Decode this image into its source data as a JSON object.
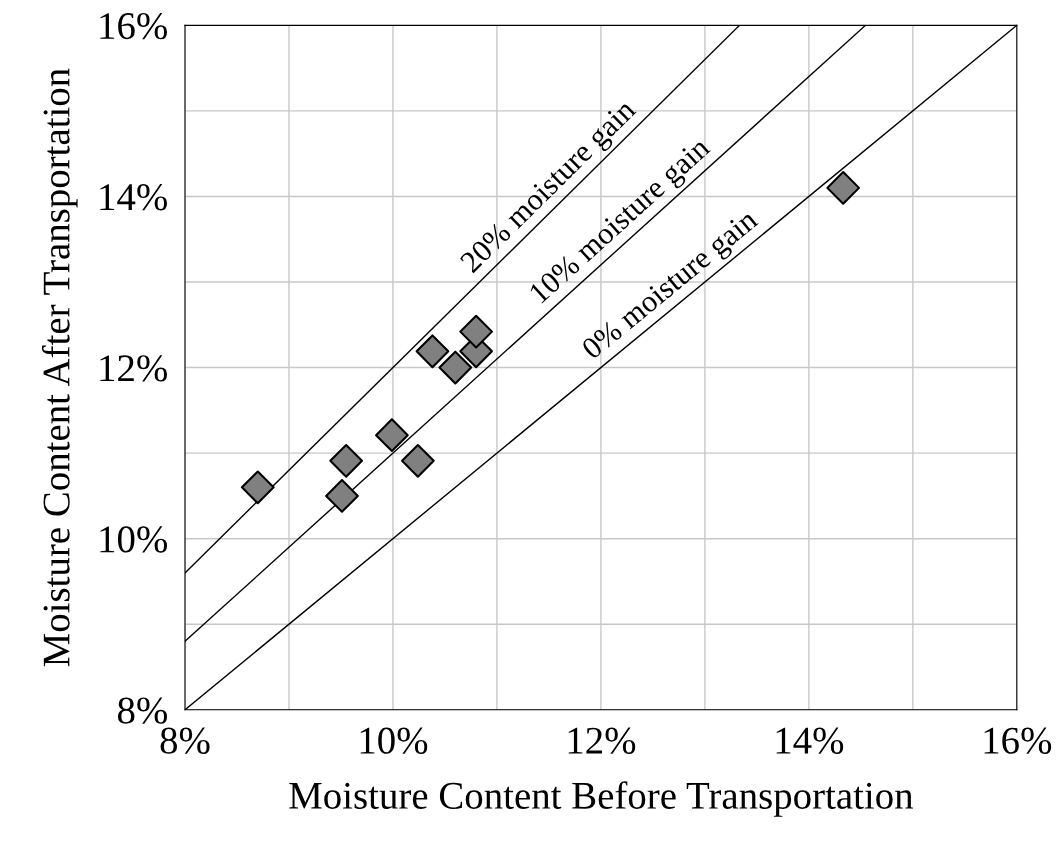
{
  "chart_data": {
    "type": "scatter",
    "xlabel": "Moisture Content Before Transportation",
    "ylabel": "Moisture Content After Transportation",
    "xlim": [
      8,
      16
    ],
    "ylim": [
      8,
      16
    ],
    "xticks": [
      {
        "value": 8,
        "label": "8%"
      },
      {
        "value": 9,
        "label": null
      },
      {
        "value": 10,
        "label": "10%"
      },
      {
        "value": 11,
        "label": null
      },
      {
        "value": 12,
        "label": "12%"
      },
      {
        "value": 13,
        "label": null
      },
      {
        "value": 14,
        "label": "14%"
      },
      {
        "value": 15,
        "label": null
      },
      {
        "value": 16,
        "label": "16%"
      }
    ],
    "yticks": [
      {
        "value": 8,
        "label": "8%"
      },
      {
        "value": 9,
        "label": null
      },
      {
        "value": 10,
        "label": "10%"
      },
      {
        "value": 11,
        "label": null
      },
      {
        "value": 12,
        "label": "12%"
      },
      {
        "value": 13,
        "label": null
      },
      {
        "value": 14,
        "label": "14%"
      },
      {
        "value": 15,
        "label": null
      },
      {
        "value": 16,
        "label": "16%"
      }
    ],
    "grid": true,
    "legend": false,
    "series": [
      {
        "type": "line",
        "marker": "none",
        "color": "#000000",
        "x": [
          8,
          16
        ],
        "values": [
          8,
          16
        ]
      },
      {
        "type": "line",
        "marker": "none",
        "color": "#000000",
        "x": [
          8,
          14.545
        ],
        "values": [
          8.8,
          16
        ]
      },
      {
        "type": "line",
        "marker": "none",
        "color": "#000000",
        "x": [
          8,
          13.333
        ],
        "values": [
          9.6,
          16
        ]
      },
      {
        "marker": "diamond",
        "color": "#808080",
        "x": [
          8.7,
          9.51,
          9.55,
          9.99,
          10.24,
          10.38,
          10.6,
          10.8,
          10.8,
          14.33
        ],
        "values": [
          10.6,
          10.5,
          10.91,
          11.21,
          10.91,
          12.19,
          12.0,
          12.19,
          12.42,
          14.1
        ]
      }
    ],
    "annotations": [
      {
        "text": "20% moisture gain",
        "x": 11.6,
        "y": 13.92
      },
      {
        "text": "10% moisture gain",
        "x": 12.28,
        "y": 13.51
      },
      {
        "text": "0% moisture gain",
        "x": 12.76,
        "y": 12.76
      }
    ]
  }
}
